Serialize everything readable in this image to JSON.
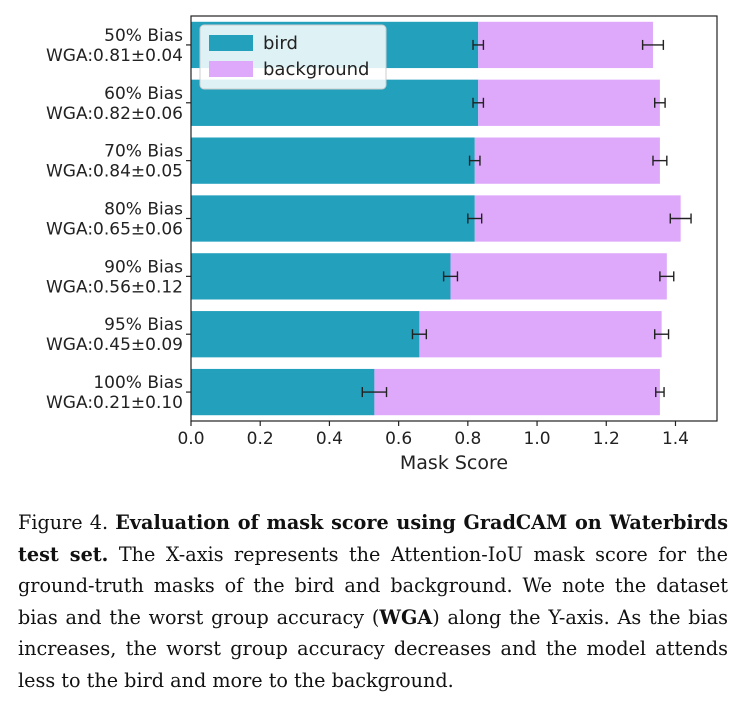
{
  "chart_data": {
    "type": "bar",
    "orientation": "horizontal",
    "stacked": true,
    "categories": [
      "50% Bias",
      "60% Bias",
      "70% Bias",
      "80% Bias",
      "90% Bias",
      "95% Bias",
      "100% Bias"
    ],
    "wga": [
      "WGA:0.81±0.04",
      "WGA:0.82±0.06",
      "WGA:0.84±0.05",
      "WGA:0.65±0.06",
      "WGA:0.56±0.12",
      "WGA:0.45±0.09",
      "WGA:0.21±0.10"
    ],
    "series": [
      {
        "name": "bird",
        "color": "#22a0bc",
        "values": [
          0.83,
          0.83,
          0.82,
          0.82,
          0.75,
          0.66,
          0.53
        ],
        "errors": [
          0.015,
          0.015,
          0.015,
          0.02,
          0.02,
          0.02,
          0.035
        ]
      },
      {
        "name": "background",
        "color": "#dfa9fb",
        "values": [
          0.505,
          0.525,
          0.535,
          0.595,
          0.625,
          0.7,
          0.825
        ],
        "errors": [
          0.03,
          0.015,
          0.02,
          0.03,
          0.02,
          0.02,
          0.012
        ]
      }
    ],
    "xlabel": "Mask Score",
    "ylabel": "",
    "xlim": [
      0,
      1.52
    ],
    "xticks": [
      "0.0",
      "0.2",
      "0.4",
      "0.6",
      "0.8",
      "1.0",
      "1.2",
      "1.4"
    ],
    "legend_position": "top-left",
    "grid": false
  },
  "caption": {
    "figure_label": "Figure 4.",
    "bold_title": "Evaluation of mask score using GradCAM on Waterbirds test set.",
    "text_before": "The X-axis represents the Attention-IoU mask score for the ground-truth masks of the bird and background. We note the dataset bias and the worst group accuracy (",
    "bold_term": "WGA",
    "text_after": ") along the Y-axis. As the bias increases, the worst group accuracy decreases and the model attends less to the bird and more to the background."
  }
}
